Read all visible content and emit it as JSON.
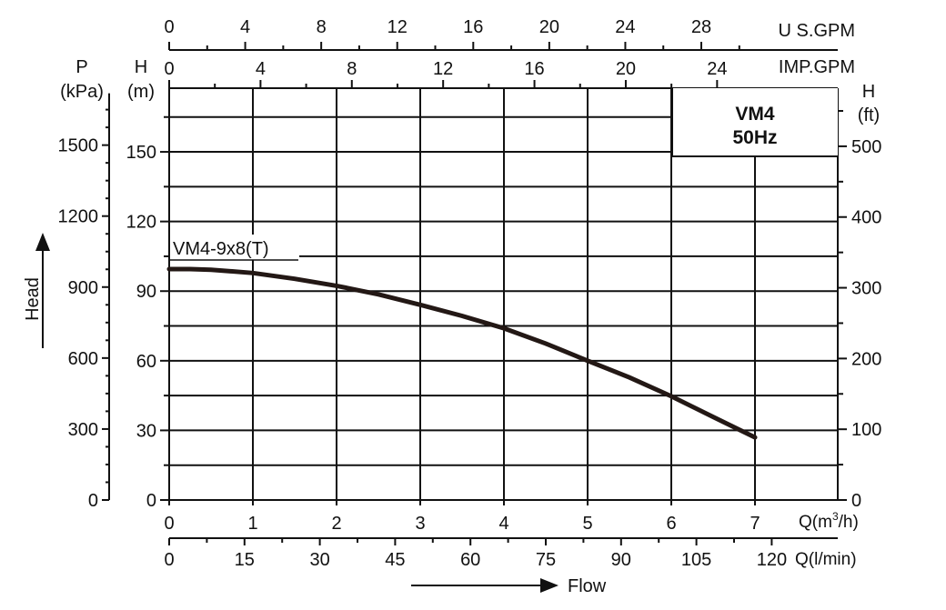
{
  "chart_data": {
    "type": "line",
    "title": "VM4",
    "subtitle": "50Hz",
    "curve_label": "VM4-9x8(T)",
    "xlabel": "Flow",
    "ylabel": "Head",
    "colors": {
      "curve": "#231815",
      "grid": "#111111",
      "text": "#111111",
      "background": "#ffffff"
    },
    "series": [
      {
        "name": "VM4-9x8(T)",
        "x_unit": "m3/h",
        "y_unit": "m",
        "x": [
          0,
          0.25,
          0.5,
          1,
          1.5,
          2,
          2.5,
          3,
          3.5,
          4,
          4.5,
          5,
          5.5,
          6,
          6.5,
          7
        ],
        "y": [
          99.5,
          99.5,
          99.2,
          97.8,
          95.3,
          92.3,
          88.6,
          84.1,
          79.3,
          74.0,
          67.4,
          60.0,
          52.8,
          44.7,
          35.8,
          27.0
        ]
      }
    ],
    "axes": {
      "q_m3h": {
        "label": "Q(m³/h)",
        "ticks": [
          "0",
          "1",
          "2",
          "3",
          "4",
          "5",
          "6",
          "7"
        ],
        "range": [
          0,
          7
        ]
      },
      "q_lmin": {
        "label": "Q(l/min)",
        "ticks": [
          "0",
          "15",
          "30",
          "45",
          "60",
          "75",
          "90",
          "105",
          "120"
        ],
        "range": [
          0,
          116.67
        ]
      },
      "us_gpm": {
        "label": "U S.GPM",
        "ticks": [
          "0",
          "4",
          "8",
          "12",
          "16",
          "20",
          "24",
          "28"
        ],
        "range": [
          0,
          30.82
        ]
      },
      "imp_gpm": {
        "label": "IMP.GPM",
        "ticks": [
          "0",
          "4",
          "8",
          "12",
          "16",
          "20",
          "24"
        ],
        "range": [
          0,
          25.67
        ]
      },
      "h_m": {
        "label_top": "H",
        "label_unit": "(m)",
        "ticks": [
          "0",
          "30",
          "60",
          "90",
          "120",
          "150"
        ],
        "range": [
          0,
          177
        ]
      },
      "p_kpa": {
        "label_top": "P",
        "label_unit": "(kPa)",
        "ticks": [
          "0",
          "300",
          "600",
          "900",
          "1200",
          "1500"
        ],
        "range": [
          0,
          1736
        ]
      },
      "h_ft": {
        "label_top": "H",
        "label_unit": "(ft)",
        "ticks": [
          "0",
          "100",
          "200",
          "300",
          "400",
          "500"
        ],
        "range": [
          0,
          580.7
        ]
      }
    },
    "grid": true
  }
}
